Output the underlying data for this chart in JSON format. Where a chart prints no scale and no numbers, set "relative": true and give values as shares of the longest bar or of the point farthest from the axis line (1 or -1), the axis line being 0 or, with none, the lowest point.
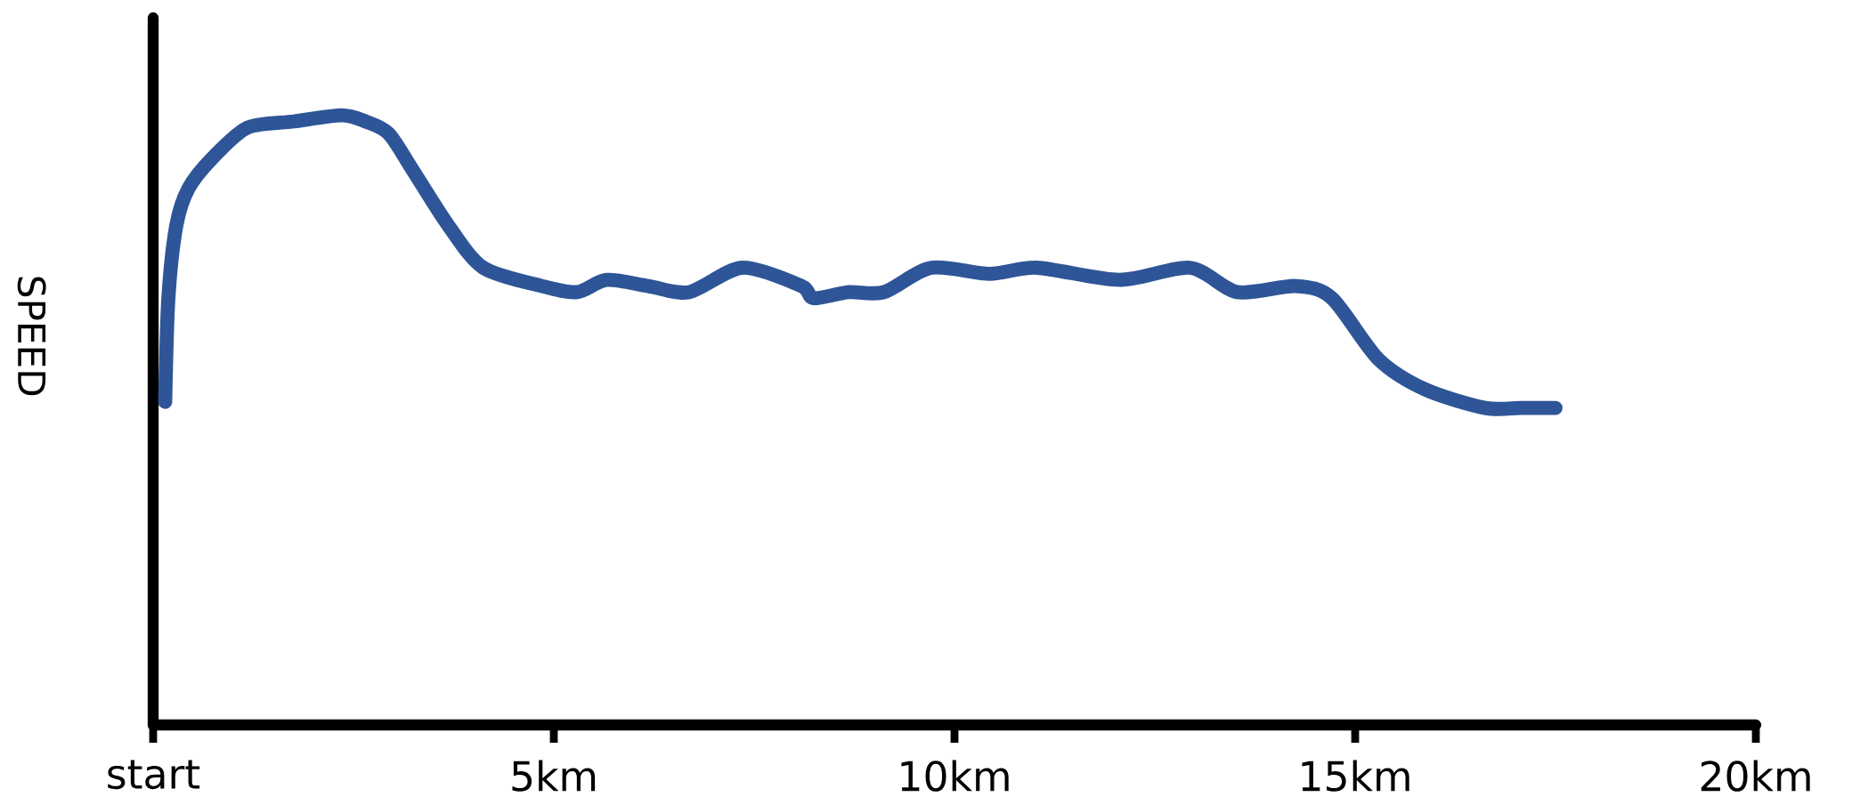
{
  "chart_data": {
    "type": "line",
    "relative": true,
    "ylabel": "SPEED",
    "color": "#2e5597",
    "xlim": [
      0,
      20
    ],
    "xticks": [
      {
        "value": 0,
        "label": "start"
      },
      {
        "value": 5,
        "label": "5km"
      },
      {
        "value": 10,
        "label": "10km"
      },
      {
        "value": 15,
        "label": "15km"
      },
      {
        "value": 20,
        "label": "20km"
      }
    ],
    "x": [
      0.15,
      0.19,
      0.29,
      0.44,
      0.74,
      1.18,
      1.76,
      2.35,
      2.65,
      2.94,
      3.24,
      3.68,
      4.12,
      4.85,
      5.29,
      5.66,
      6.18,
      6.69,
      7.35,
      8.09,
      8.24,
      8.68,
      9.12,
      9.71,
      10.44,
      11.03,
      12.06,
      12.94,
      13.53,
      14.26,
      14.71,
      15.29,
      15.88,
      16.62,
      17.06,
      17.35,
      17.5
    ],
    "values": [
      0.53,
      0.7,
      0.82,
      0.88,
      0.93,
      0.98,
      0.99,
      1.0,
      0.99,
      0.97,
      0.91,
      0.82,
      0.75,
      0.72,
      0.71,
      0.73,
      0.72,
      0.71,
      0.75,
      0.72,
      0.7,
      0.71,
      0.71,
      0.75,
      0.74,
      0.75,
      0.73,
      0.75,
      0.71,
      0.72,
      0.7,
      0.6,
      0.55,
      0.52,
      0.52,
      0.52,
      0.52
    ]
  }
}
